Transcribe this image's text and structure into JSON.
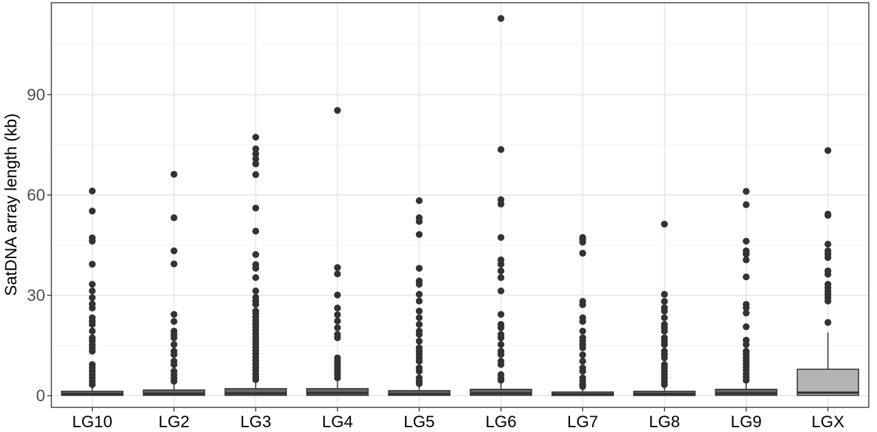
{
  "chart_data": {
    "type": "box",
    "xlabel": "",
    "ylabel": "SatDNA array length (kb)",
    "ylim": [
      -3.5,
      117.5
    ],
    "y_ticks": [
      0,
      30,
      60,
      90
    ],
    "y_tick_labels": [
      "0",
      "30",
      "60",
      "90"
    ],
    "grid": true,
    "categories": [
      "LG10",
      "LG2",
      "LG3",
      "LG4",
      "LG5",
      "LG6",
      "LG7",
      "LG8",
      "LG9",
      "LGX"
    ],
    "box_colors": [
      "#666666",
      "#666666",
      "#666666",
      "#666666",
      "#666666",
      "#666666",
      "#666666",
      "#666666",
      "#666666",
      "#b3b3b3"
    ],
    "boxes": [
      {
        "category": "LG10",
        "q1": 0.1,
        "median": 0.5,
        "q3": 1.3,
        "whisker_low": 0,
        "whisker_high": 2.5,
        "outliers": [
          61.2,
          55.2,
          47.2,
          46.2,
          39.3,
          33.3,
          31.3,
          29.3,
          27.4,
          26.2,
          23.3,
          22.3,
          21.3,
          19.3,
          17.3,
          16.3,
          15.2,
          14.3,
          13.3,
          9.3,
          8.3,
          7.3,
          6.3,
          5.3,
          4.3,
          3.3
        ]
      },
      {
        "category": "LG2",
        "q1": 0.1,
        "median": 0.6,
        "q3": 1.7,
        "whisker_low": 0,
        "whisker_high": 3.3,
        "outliers": [
          66.2,
          53.2,
          43.3,
          39.4,
          24.3,
          22.2,
          19.3,
          18.3,
          17.3,
          15.3,
          13.3,
          12.3,
          10.3,
          9.3,
          7.3,
          6.3,
          5.3,
          4.3
        ]
      },
      {
        "category": "LG3",
        "q1": 0.1,
        "median": 0.7,
        "q3": 2.1,
        "whisker_low": 0,
        "whisker_high": 4.2,
        "outliers": [
          77.3,
          73.8,
          72.3,
          70.8,
          69.3,
          66.1,
          56.1,
          49.2,
          42.2,
          39.2,
          38.1,
          35.3,
          31.3,
          29.4,
          28.3,
          27.3,
          25.3,
          24.5,
          23.5,
          22.5,
          21.5,
          20.5,
          19.5,
          18.5,
          17.5,
          16.5,
          15.5,
          14.5,
          13.5,
          12.5,
          11.5,
          10.5,
          9.5,
          8.5,
          7.5,
          6.5,
          5.5,
          4.8
        ]
      },
      {
        "category": "LG4",
        "q1": 0.1,
        "median": 0.8,
        "q3": 2.1,
        "whisker_low": 0,
        "whisker_high": 4.3,
        "outliers": [
          85.3,
          38.3,
          36.4,
          30.1,
          26.2,
          24.2,
          22.3,
          20.3,
          18.3,
          17.3,
          11.3,
          10.3,
          9.3,
          8.3,
          7.3,
          6.3,
          5.3
        ]
      },
      {
        "category": "LG5",
        "q1": 0.1,
        "median": 0.5,
        "q3": 1.5,
        "whisker_low": 0,
        "whisker_high": 3.0,
        "outliers": [
          58.3,
          53.2,
          52.1,
          48.2,
          38.1,
          34.3,
          33.3,
          30.3,
          28.3,
          25.3,
          23.3,
          21.3,
          19.3,
          18.3,
          16.3,
          14.3,
          13.3,
          12.3,
          11.3,
          10.3,
          8.3,
          7.3,
          5.3,
          4.3,
          3.6
        ]
      },
      {
        "category": "LG6",
        "q1": 0.1,
        "median": 0.7,
        "q3": 1.9,
        "whisker_low": 0,
        "whisker_high": 4.0,
        "outliers": [
          112.8,
          73.6,
          58.6,
          57.3,
          47.3,
          40.6,
          39.3,
          37.3,
          35.3,
          31.3,
          24.3,
          21.3,
          20.3,
          18.3,
          17.3,
          15.3,
          13.3,
          12.3,
          10.3,
          9.3,
          6.3,
          5.3,
          4.6
        ]
      },
      {
        "category": "LG7",
        "q1": 0.05,
        "median": 0.4,
        "q3": 1.1,
        "whisker_low": 0,
        "whisker_high": 2.2,
        "outliers": [
          47.3,
          46.6,
          45.9,
          42.6,
          28.2,
          27.2,
          23.3,
          22.2,
          19.3,
          17.3,
          16.3,
          15.3,
          14.3,
          12.2,
          10.3,
          8.3,
          7.3,
          5.3,
          4.3,
          3.3,
          2.7
        ]
      },
      {
        "category": "LG8",
        "q1": 0.05,
        "median": 0.5,
        "q3": 1.3,
        "whisker_low": 0,
        "whisker_high": 2.5,
        "outliers": [
          51.3,
          30.3,
          28.2,
          26.3,
          25.3,
          23.3,
          21.3,
          20.3,
          19.3,
          17.3,
          16.3,
          15.3,
          13.3,
          12.3,
          11.3,
          9.3,
          8.3,
          7.3,
          6.3,
          5.3,
          4.3,
          3.3
        ]
      },
      {
        "category": "LG9",
        "q1": 0.1,
        "median": 0.7,
        "q3": 1.9,
        "whisker_low": 0,
        "whisker_high": 3.8,
        "outliers": [
          61.1,
          57.1,
          46.2,
          43.3,
          42.3,
          40.6,
          35.5,
          27.3,
          26.3,
          24.7,
          20.6,
          16.6,
          15.3,
          13.3,
          12.3,
          11.3,
          10.6,
          9.6,
          8.6,
          7.6,
          6.6,
          5.6,
          4.6
        ]
      },
      {
        "category": "LGX",
        "q1": 0.1,
        "median": 0.9,
        "q3": 7.9,
        "whisker_low": 0,
        "whisker_high": 18.9,
        "outliers": [
          73.3,
          54.3,
          53.9,
          45.3,
          43.3,
          42.3,
          41.3,
          37.3,
          36.3,
          33.3,
          32.3,
          31.3,
          30.3,
          29.3,
          28.3,
          21.9
        ]
      }
    ]
  }
}
